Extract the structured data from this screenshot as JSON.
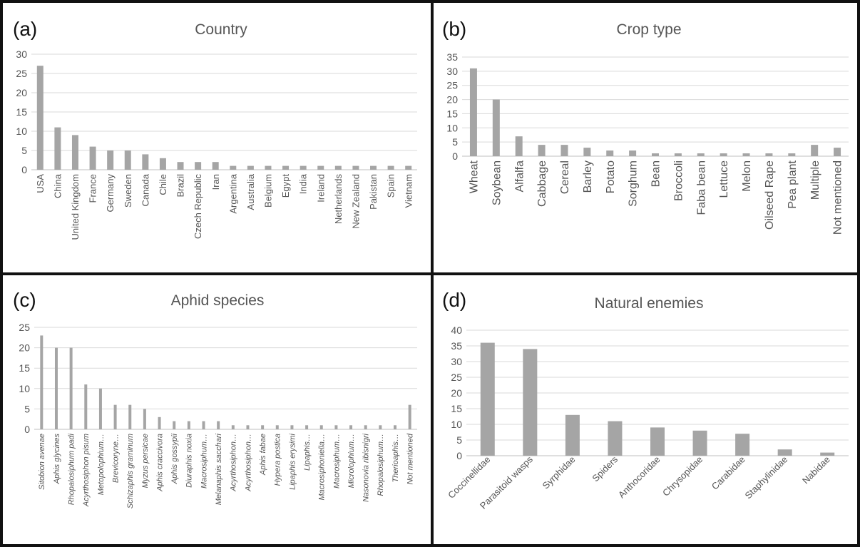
{
  "chart_data": [
    {
      "type": "bar",
      "panel_label": "(a)",
      "title": "Country",
      "ylim": [
        0,
        30
      ],
      "yticks": [
        0,
        5,
        10,
        15,
        20,
        25,
        30
      ],
      "categories": [
        "USA",
        "China",
        "United Kingdom",
        "France",
        "Germany",
        "Sweden",
        "Canada",
        "Chile",
        "Brazil",
        "Czech Republic",
        "Iran",
        "Argentina",
        "Australia",
        "Belgium",
        "Egypt",
        "India",
        "Ireland",
        "Netherlands",
        "New Zealand",
        "Pakistan",
        "Spain",
        "Vietnam"
      ],
      "values": [
        27,
        11,
        9,
        6,
        5,
        5,
        4,
        3,
        2,
        2,
        2,
        1,
        1,
        1,
        1,
        1,
        1,
        1,
        1,
        1,
        1,
        1
      ],
      "grid": true,
      "italic_labels": false,
      "bar_color": "#a5a5a5"
    },
    {
      "type": "bar",
      "panel_label": "(b)",
      "title": "Crop type",
      "ylim": [
        0,
        35
      ],
      "yticks": [
        0,
        5,
        10,
        15,
        20,
        25,
        30,
        35
      ],
      "categories": [
        "Wheat",
        "Soybean",
        "Alfalfa",
        "Cabbage",
        "Cereal",
        "Barley",
        "Potato",
        "Sorghum",
        "Bean",
        "Broccoli",
        "Faba bean",
        "Lettuce",
        "Melon",
        "Oilseed Rape",
        "Pea plant",
        "Multiple",
        "Not mentioned"
      ],
      "values": [
        31,
        20,
        7,
        4,
        4,
        3,
        2,
        2,
        1,
        1,
        1,
        1,
        1,
        1,
        1,
        4,
        3
      ],
      "grid": true,
      "italic_labels": false,
      "bar_color": "#a5a5a5"
    },
    {
      "type": "bar",
      "panel_label": "(c)",
      "title": "Aphid species",
      "ylim": [
        0,
        25
      ],
      "yticks": [
        0,
        5,
        10,
        15,
        20,
        25
      ],
      "categories": [
        "Sitobion avenae",
        "Aphis glycines",
        "Rhopalosiphum padi",
        "Acyrthosiphon pisum",
        "Metopolophium…",
        "Brevicoryne…",
        "Schizaphis graminum",
        "Myzus persicae",
        "Aphis craccivora",
        "Aphis gossypii",
        "Diuraphis noxia",
        "Macrosiphum…",
        "Melanaphis sacchari",
        "Acyrthosiphon…",
        "Acyrthosiphon…",
        "Aphis fabae",
        "Hypera postica",
        "Lipaphis erysimi",
        "Lipaphis…",
        "Macrosiphoniella…",
        "Macrosiphum…",
        "Microlophium…",
        "Nasonovia ribisnigri",
        "Rhopalosiphum…",
        "Therioaphis…",
        "Not mentioned"
      ],
      "values": [
        23,
        20,
        20,
        11,
        10,
        6,
        6,
        5,
        3,
        2,
        2,
        2,
        2,
        1,
        1,
        1,
        1,
        1,
        1,
        1,
        1,
        1,
        1,
        1,
        1,
        6
      ],
      "grid": true,
      "italic_labels": true,
      "bar_color": "#a5a5a5"
    },
    {
      "type": "bar",
      "panel_label": "(d)",
      "title": "Natural enemies",
      "ylim": [
        0,
        40
      ],
      "yticks": [
        0,
        5,
        10,
        15,
        20,
        25,
        30,
        35,
        40
      ],
      "categories": [
        "Coccinellidae",
        "Parasitoid wasps",
        "Syrphidae",
        "Spiders",
        "Anthocoridae",
        "Chrysopidae",
        "Carabidae",
        "Staphylinidae",
        "Nabidae"
      ],
      "values": [
        36,
        34,
        13,
        11,
        9,
        8,
        7,
        2,
        1
      ],
      "grid": true,
      "italic_labels": false,
      "bar_color": "#a5a5a5"
    }
  ]
}
